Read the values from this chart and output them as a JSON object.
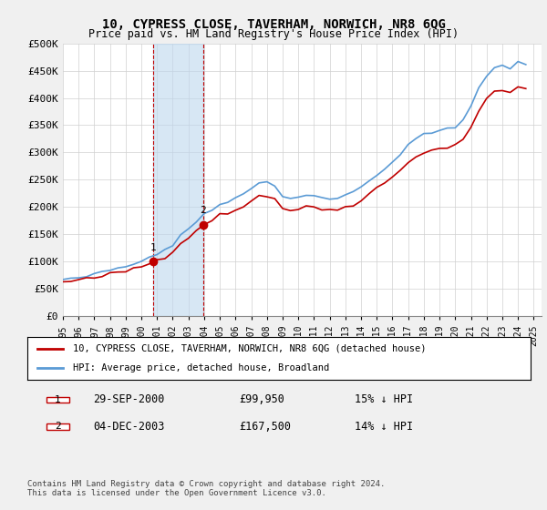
{
  "title": "10, CYPRESS CLOSE, TAVERHAM, NORWICH, NR8 6QG",
  "subtitle": "Price paid vs. HM Land Registry's House Price Index (HPI)",
  "xlabel": "",
  "ylabel": "",
  "ylim": [
    0,
    500000
  ],
  "yticks": [
    0,
    50000,
    100000,
    150000,
    200000,
    250000,
    300000,
    350000,
    400000,
    450000,
    500000
  ],
  "ytick_labels": [
    "£0",
    "£50K",
    "£100K",
    "£150K",
    "£200K",
    "£250K",
    "£300K",
    "£350K",
    "£400K",
    "£450K",
    "£500K"
  ],
  "hpi_color": "#5b9bd5",
  "price_color": "#c00000",
  "marker_color": "#c00000",
  "highlight_box_color": "#bdd7ee",
  "highlight_border_color": "#c00000",
  "sale1_date": "2000-09-29",
  "sale1_price": 99950,
  "sale1_label": "1",
  "sale1_x": 2000.75,
  "sale2_date": "2003-12-04",
  "sale2_price": 167500,
  "sale2_label": "2",
  "sale2_x": 2003.92,
  "legend_line1": "10, CYPRESS CLOSE, TAVERHAM, NORWICH, NR8 6QG (detached house)",
  "legend_line2": "HPI: Average price, detached house, Broadland",
  "table_row1_label": "1",
  "table_row1_date": "29-SEP-2000",
  "table_row1_price": "£99,950",
  "table_row1_hpi": "15% ↓ HPI",
  "table_row2_label": "2",
  "table_row2_date": "04-DEC-2003",
  "table_row2_price": "£167,500",
  "table_row2_hpi": "14% ↓ HPI",
  "footer": "Contains HM Land Registry data © Crown copyright and database right 2024.\nThis data is licensed under the Open Government Licence v3.0.",
  "bg_color": "#f0f0f0",
  "plot_bg_color": "#ffffff",
  "grid_color": "#d0d0d0"
}
